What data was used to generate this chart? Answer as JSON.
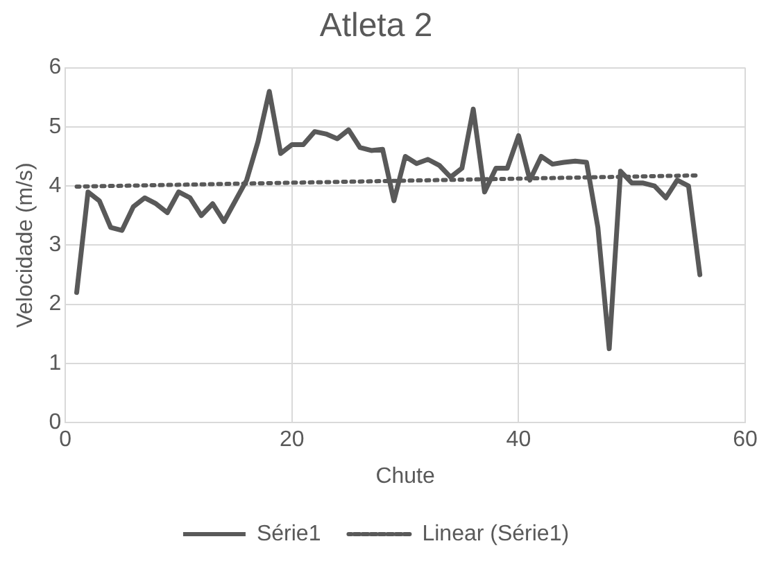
{
  "chart_data": {
    "type": "line",
    "title": "Atleta 2",
    "xlabel": "Chute",
    "ylabel": "Velocidade (m/s)",
    "x": [
      1,
      2,
      3,
      4,
      5,
      6,
      7,
      8,
      9,
      10,
      11,
      12,
      13,
      14,
      15,
      16,
      17,
      18,
      19,
      20,
      21,
      22,
      23,
      24,
      25,
      26,
      27,
      28,
      29,
      30,
      31,
      32,
      33,
      34,
      35,
      36,
      37,
      38,
      39,
      40,
      41,
      42,
      43,
      44,
      45,
      46,
      47,
      48,
      49,
      50,
      51,
      52,
      53,
      54,
      55,
      56
    ],
    "series": [
      {
        "name": "Série1",
        "color": "#595959",
        "line_style": "solid",
        "values": [
          2.2,
          3.9,
          3.75,
          3.3,
          3.25,
          3.65,
          3.8,
          3.7,
          3.55,
          3.9,
          3.8,
          3.5,
          3.7,
          3.4,
          3.75,
          4.1,
          4.75,
          5.6,
          4.55,
          4.7,
          4.7,
          4.92,
          4.88,
          4.8,
          4.95,
          4.65,
          4.6,
          4.62,
          3.75,
          4.5,
          4.38,
          4.45,
          4.35,
          4.15,
          4.3,
          5.3,
          3.9,
          4.3,
          4.3,
          4.85,
          4.1,
          4.5,
          4.37,
          4.4,
          4.42,
          4.4,
          3.3,
          1.25,
          4.25,
          4.05,
          4.05,
          4.0,
          3.8,
          4.1,
          4.0,
          2.5
        ]
      },
      {
        "name": "Linear (Série1)",
        "type": "line",
        "color": "#595959",
        "line_style": "dotted",
        "x": [
          1,
          56
        ],
        "values": [
          3.99,
          4.18
        ]
      }
    ],
    "xlim": [
      0,
      60
    ],
    "xticks": [
      0,
      20,
      40,
      60
    ],
    "ylim": [
      0,
      6
    ],
    "yticks": [
      0,
      1,
      2,
      3,
      4,
      5,
      6
    ],
    "grid": true,
    "legend": "bottom",
    "marker": "none"
  }
}
